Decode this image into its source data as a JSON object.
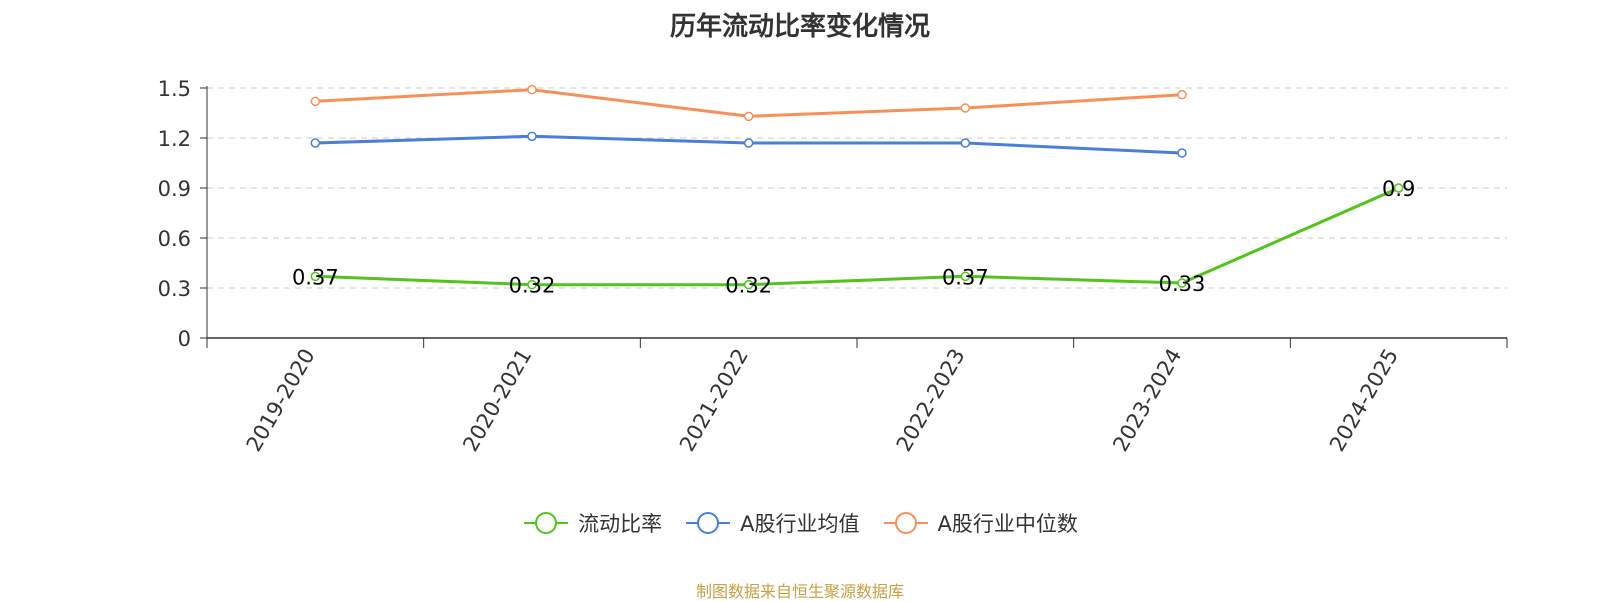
{
  "chart_data": {
    "type": "line",
    "title": "历年流动比率变化情况",
    "categories": [
      "2019-2020",
      "2020-2021",
      "2021-2022",
      "2022-2023",
      "2023-2024",
      "2024-2025"
    ],
    "ylim": [
      0,
      1.5
    ],
    "yticks": [
      "0",
      "0.3",
      "0.6",
      "0.9",
      "1.2",
      "1.5"
    ],
    "grid": true,
    "legend_position": "bottom",
    "series": [
      {
        "name": "流动比率",
        "color": "#52c41a",
        "values": [
          0.37,
          0.32,
          0.32,
          0.37,
          0.33,
          0.9
        ],
        "labels": [
          "0.37",
          "0.32",
          "0.32",
          "0.37",
          "0.33",
          "0.9"
        ]
      },
      {
        "name": "A股行业均值",
        "color": "#4a7fd8",
        "values": [
          1.17,
          1.21,
          1.17,
          1.17,
          1.11,
          null
        ]
      },
      {
        "name": "A股行业中位数",
        "color": "#f79058",
        "values": [
          1.42,
          1.49,
          1.33,
          1.38,
          1.46,
          null
        ]
      }
    ]
  },
  "source_note": "制图数据来自恒生聚源数据库"
}
